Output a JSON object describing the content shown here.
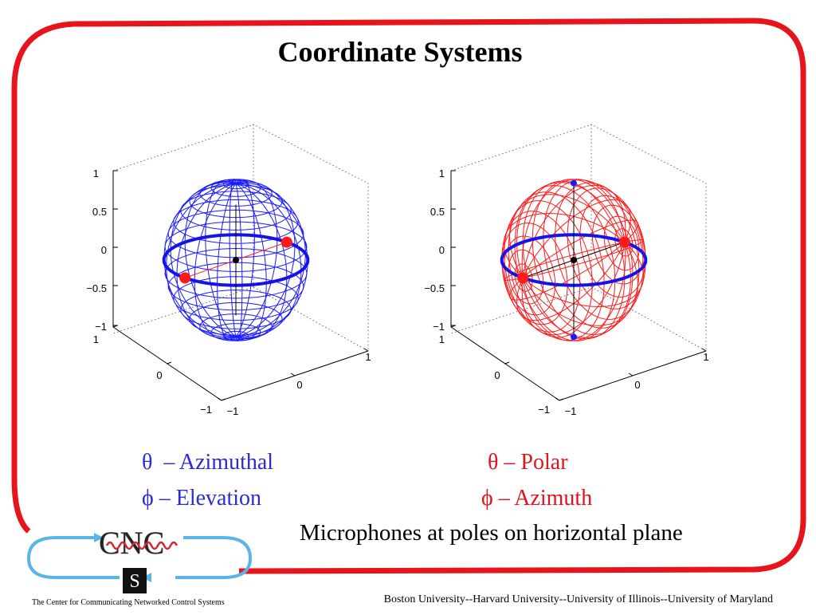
{
  "slide": {
    "title": "Coordinate Systems",
    "frame_color": "#e8141b",
    "caption": "Microphones at poles on horizontal plane",
    "footer": "Boston University--Harvard University--University of Illinois--University of Maryland"
  },
  "plots": {
    "left": {
      "color": "#1a1aff",
      "z_ticks": [
        "1",
        "0.5",
        "0",
        "−0.5",
        "−1"
      ],
      "x_ticks": [
        "1",
        "0",
        "−1"
      ],
      "y_ticks": [
        "1",
        "0",
        "−1"
      ]
    },
    "right": {
      "color": "#ff1a1a",
      "z_ticks": [
        "1",
        "0.5",
        "0",
        "−0.5",
        "−1"
      ],
      "x_ticks": [
        "1",
        "0",
        "−1"
      ],
      "y_ticks": [
        "1",
        "0",
        "−1"
      ]
    }
  },
  "legend_left": {
    "theta_symbol": "θ",
    "theta_text": "– Azimuthal",
    "phi_symbol": "ϕ",
    "phi_text": "–  Elevation",
    "color": "#2b2bd4"
  },
  "legend_right": {
    "theta_symbol": "θ",
    "theta_text": "– Polar",
    "phi_symbol": "ϕ",
    "phi_text": "– Azimuth",
    "color": "#e0141e"
  },
  "logo": {
    "wordmark": "CNC",
    "letter": "S",
    "caption": "The Center for Communicating Networked Control Systems"
  }
}
